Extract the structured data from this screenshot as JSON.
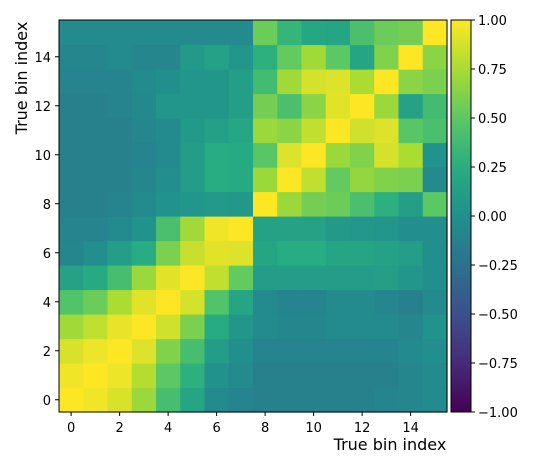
{
  "chart_data": {
    "type": "heatmap",
    "xlabel": "True bin index",
    "ylabel": "True bin index",
    "x_ticks": [
      0,
      2,
      4,
      6,
      8,
      10,
      12,
      14
    ],
    "y_ticks": [
      0,
      2,
      4,
      6,
      8,
      10,
      12,
      14
    ],
    "xlim": [
      -0.5,
      15.5
    ],
    "ylim": [
      -0.5,
      15.5
    ],
    "colorbar": {
      "range": [
        -1.0,
        1.0
      ],
      "ticks": [
        -1.0,
        -0.75,
        -0.5,
        -0.25,
        0.0,
        0.25,
        0.5,
        0.75,
        1.0
      ],
      "tick_labels": [
        "−1.00",
        "−0.75",
        "−0.50",
        "−0.25",
        "0.00",
        "0.25",
        "0.50",
        "0.75",
        "1.00"
      ],
      "colormap": "viridis"
    },
    "rows_note": "z[row][col], row index = y bin (0 = bottom), col index = x bin",
    "z": [
      [
        1.0,
        0.96,
        0.89,
        0.7,
        0.4,
        0.18,
        -0.05,
        -0.1,
        -0.12,
        -0.12,
        -0.12,
        -0.12,
        -0.12,
        -0.1,
        -0.08,
        -0.05
      ],
      [
        0.96,
        1.0,
        0.95,
        0.78,
        0.5,
        0.28,
        0.02,
        -0.05,
        -0.12,
        -0.12,
        -0.12,
        -0.12,
        -0.12,
        -0.12,
        -0.08,
        -0.05
      ],
      [
        0.89,
        0.95,
        1.0,
        0.9,
        0.62,
        0.4,
        0.1,
        -0.02,
        -0.1,
        -0.1,
        -0.1,
        -0.1,
        -0.1,
        -0.1,
        -0.05,
        -0.02
      ],
      [
        0.72,
        0.82,
        0.94,
        1.0,
        0.86,
        0.6,
        0.24,
        0.05,
        -0.05,
        -0.07,
        -0.08,
        -0.05,
        -0.04,
        -0.05,
        -0.08,
        0.02
      ],
      [
        0.45,
        0.55,
        0.75,
        0.92,
        1.0,
        0.88,
        0.45,
        0.18,
        -0.04,
        -0.1,
        -0.1,
        -0.05,
        -0.05,
        -0.07,
        -0.12,
        -0.05
      ],
      [
        0.15,
        0.22,
        0.4,
        0.7,
        0.92,
        1.0,
        0.82,
        0.52,
        0.1,
        0.1,
        0.1,
        0.1,
        0.1,
        0.12,
        0.05,
        0.0
      ],
      [
        -0.08,
        -0.02,
        0.12,
        0.25,
        0.6,
        0.84,
        0.92,
        0.9,
        0.18,
        0.25,
        0.25,
        0.18,
        0.18,
        0.15,
        0.12,
        0.0
      ],
      [
        -0.1,
        -0.1,
        -0.05,
        0.02,
        0.42,
        0.72,
        0.96,
        1.0,
        0.15,
        0.15,
        0.15,
        0.08,
        0.06,
        0.05,
        -0.02,
        -0.02
      ],
      [
        -0.12,
        -0.12,
        -0.1,
        -0.05,
        0.02,
        0.05,
        0.08,
        0.06,
        1.0,
        0.7,
        0.58,
        0.55,
        0.42,
        0.28,
        0.12,
        0.5
      ],
      [
        -0.12,
        -0.12,
        -0.12,
        -0.08,
        -0.02,
        0.1,
        0.25,
        0.22,
        0.7,
        1.0,
        0.82,
        0.52,
        0.68,
        0.62,
        0.6,
        -0.05
      ],
      [
        -0.12,
        -0.12,
        -0.12,
        -0.1,
        -0.04,
        0.1,
        0.25,
        0.22,
        0.48,
        0.9,
        1.0,
        0.7,
        0.62,
        0.88,
        0.75,
        0.02
      ],
      [
        -0.12,
        -0.12,
        -0.12,
        -0.08,
        -0.04,
        0.08,
        0.14,
        0.2,
        0.7,
        0.65,
        0.82,
        1.0,
        0.86,
        0.9,
        0.48,
        0.42
      ],
      [
        -0.12,
        -0.12,
        -0.1,
        -0.06,
        0.05,
        0.05,
        0.05,
        0.12,
        0.58,
        0.42,
        0.65,
        0.92,
        1.0,
        0.7,
        0.15,
        0.38
      ],
      [
        -0.1,
        -0.1,
        -0.1,
        -0.05,
        0.0,
        0.05,
        0.05,
        0.12,
        0.38,
        0.72,
        0.88,
        0.9,
        0.75,
        1.0,
        0.65,
        0.6
      ],
      [
        -0.08,
        -0.08,
        -0.05,
        -0.08,
        -0.08,
        0.08,
        0.15,
        0.05,
        0.28,
        0.52,
        0.72,
        0.5,
        0.18,
        0.62,
        1.0,
        0.65
      ],
      [
        -0.04,
        -0.04,
        -0.05,
        -0.05,
        -0.05,
        -0.05,
        -0.05,
        -0.05,
        0.55,
        0.32,
        0.2,
        0.18,
        0.42,
        0.55,
        0.58,
        1.0
      ]
    ]
  }
}
